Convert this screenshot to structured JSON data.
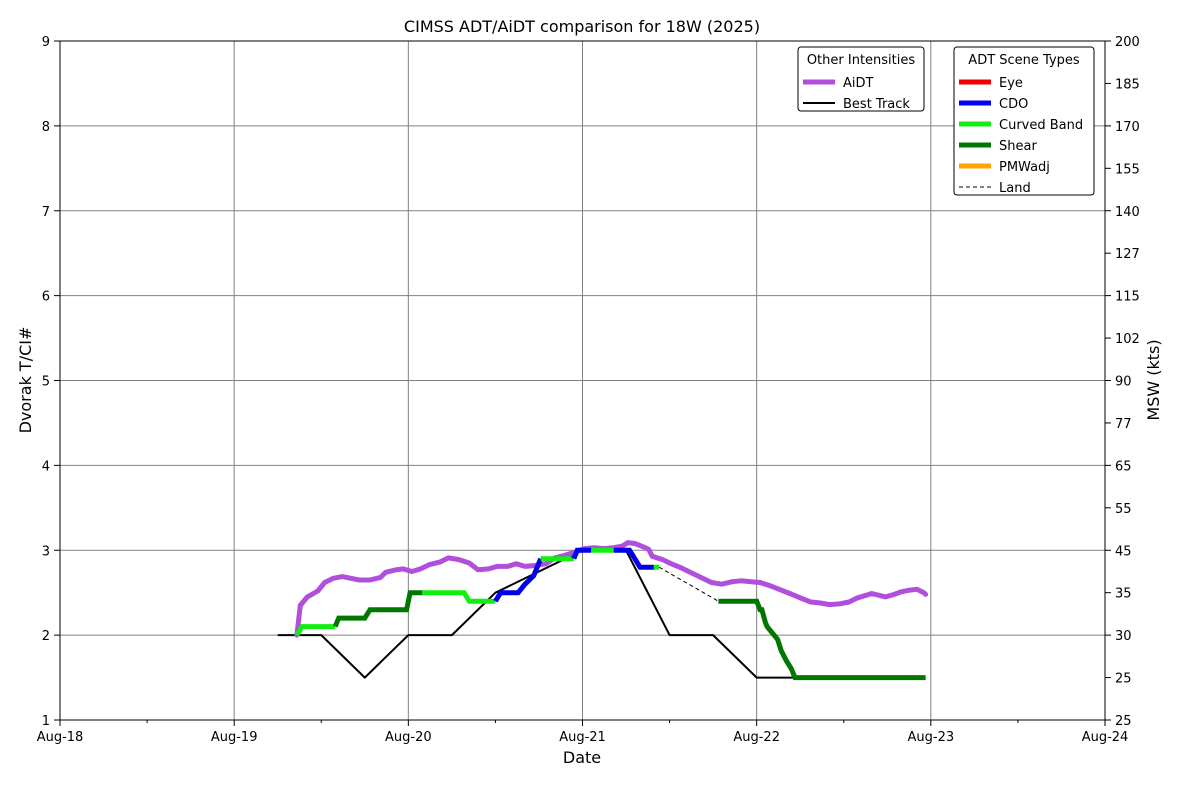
{
  "chart_data": {
    "type": "line",
    "title": "CIMSS ADT/AiDT comparison for 18W (2025)",
    "xlabel": "Date",
    "ylabel": "Dvorak T/CI#",
    "ylabel_right": "MSW (kts)",
    "x_ticks": [
      "Aug-18",
      "Aug-19",
      "Aug-20",
      "Aug-21",
      "Aug-22",
      "Aug-23",
      "Aug-24"
    ],
    "x_range_days": [
      18,
      24
    ],
    "y_ticks": [
      1,
      2,
      3,
      4,
      5,
      6,
      7,
      8,
      9
    ],
    "ylim": [
      1,
      9
    ],
    "y2_ticks": [
      {
        "t": 1.0,
        "label": "25"
      },
      {
        "t": 1.5,
        "label": "25"
      },
      {
        "t": 2.0,
        "label": "30"
      },
      {
        "t": 2.5,
        "label": "35"
      },
      {
        "t": 3.0,
        "label": "45"
      },
      {
        "t": 3.5,
        "label": "55"
      },
      {
        "t": 4.0,
        "label": "65"
      },
      {
        "t": 4.5,
        "label": "77"
      },
      {
        "t": 5.0,
        "label": "90"
      },
      {
        "t": 5.5,
        "label": "102"
      },
      {
        "t": 6.0,
        "label": "115"
      },
      {
        "t": 6.5,
        "label": "127"
      },
      {
        "t": 7.0,
        "label": "140"
      },
      {
        "t": 7.5,
        "label": "155"
      },
      {
        "t": 8.0,
        "label": "170"
      },
      {
        "t": 8.5,
        "label": "185"
      },
      {
        "t": 9.0,
        "label": "200"
      }
    ],
    "grid": true,
    "legend_other": {
      "title": "Other Intensities",
      "placement": "top-right",
      "entries": [
        {
          "name": "AiDT",
          "color": "#b04fdc",
          "style": "thick"
        },
        {
          "name": "Best Track",
          "color": "#000000",
          "style": "solid"
        }
      ]
    },
    "legend_scene": {
      "title": "ADT Scene Types",
      "placement": "top-right",
      "entries": [
        {
          "name": "Eye",
          "color": "#ee0000",
          "style": "thick"
        },
        {
          "name": "CDO",
          "color": "#0000ee",
          "style": "thick"
        },
        {
          "name": "Curved Band",
          "color": "#11ee11",
          "style": "thick"
        },
        {
          "name": "Shear",
          "color": "#007700",
          "style": "thick"
        },
        {
          "name": "PMWadj",
          "color": "#ffa500",
          "style": "thick"
        },
        {
          "name": "Land",
          "color": "#000000",
          "style": "dashed"
        }
      ]
    },
    "series": [
      {
        "name": "Best Track",
        "color": "#000000",
        "points": [
          [
            19.25,
            2.0
          ],
          [
            19.5,
            2.0
          ],
          [
            19.75,
            1.5
          ],
          [
            20.0,
            2.0
          ],
          [
            20.25,
            2.0
          ],
          [
            20.5,
            2.5
          ],
          [
            20.75,
            2.75
          ],
          [
            21.0,
            3.0
          ],
          [
            21.25,
            3.0
          ],
          [
            21.5,
            2.0
          ],
          [
            21.75,
            2.0
          ],
          [
            22.0,
            1.5
          ],
          [
            22.25,
            1.5
          ]
        ]
      },
      {
        "name": "AiDT",
        "color": "#b04fdc",
        "points": [
          [
            19.36,
            2.0
          ],
          [
            19.38,
            2.35
          ],
          [
            19.42,
            2.45
          ],
          [
            19.48,
            2.52
          ],
          [
            19.52,
            2.62
          ],
          [
            19.57,
            2.67
          ],
          [
            19.62,
            2.69
          ],
          [
            19.67,
            2.67
          ],
          [
            19.72,
            2.65
          ],
          [
            19.78,
            2.65
          ],
          [
            19.84,
            2.68
          ],
          [
            19.87,
            2.74
          ],
          [
            19.93,
            2.77
          ],
          [
            19.97,
            2.78
          ],
          [
            20.02,
            2.75
          ],
          [
            20.07,
            2.78
          ],
          [
            20.12,
            2.83
          ],
          [
            20.18,
            2.86
          ],
          [
            20.23,
            2.91
          ],
          [
            20.29,
            2.89
          ],
          [
            20.35,
            2.85
          ],
          [
            20.4,
            2.77
          ],
          [
            20.46,
            2.78
          ],
          [
            20.51,
            2.81
          ],
          [
            20.57,
            2.81
          ],
          [
            20.62,
            2.84
          ],
          [
            20.67,
            2.81
          ],
          [
            20.73,
            2.82
          ],
          [
            20.79,
            2.84
          ],
          [
            20.84,
            2.91
          ],
          [
            20.9,
            2.94
          ],
          [
            20.96,
            2.98
          ],
          [
            21.01,
            3.02
          ],
          [
            21.07,
            3.03
          ],
          [
            21.12,
            3.02
          ],
          [
            21.18,
            3.03
          ],
          [
            21.23,
            3.05
          ],
          [
            21.26,
            3.09
          ],
          [
            21.3,
            3.08
          ],
          [
            21.35,
            3.04
          ],
          [
            21.38,
            3.01
          ],
          [
            21.4,
            2.93
          ],
          [
            21.46,
            2.89
          ],
          [
            21.51,
            2.84
          ],
          [
            21.57,
            2.79
          ],
          [
            21.63,
            2.73
          ],
          [
            21.69,
            2.67
          ],
          [
            21.74,
            2.62
          ],
          [
            21.8,
            2.6
          ],
          [
            21.86,
            2.63
          ],
          [
            21.91,
            2.64
          ],
          [
            21.97,
            2.63
          ],
          [
            22.02,
            2.62
          ],
          [
            22.08,
            2.58
          ],
          [
            22.14,
            2.53
          ],
          [
            22.19,
            2.49
          ],
          [
            22.25,
            2.44
          ],
          [
            22.31,
            2.39
          ],
          [
            22.36,
            2.38
          ],
          [
            22.42,
            2.36
          ],
          [
            22.48,
            2.37
          ],
          [
            22.53,
            2.39
          ],
          [
            22.58,
            2.44
          ],
          [
            22.63,
            2.47
          ],
          [
            22.66,
            2.49
          ],
          [
            22.7,
            2.47
          ],
          [
            22.74,
            2.45
          ],
          [
            22.79,
            2.48
          ],
          [
            22.83,
            2.51
          ],
          [
            22.88,
            2.53
          ],
          [
            22.92,
            2.54
          ],
          [
            22.96,
            2.5
          ],
          [
            22.97,
            2.48
          ]
        ]
      },
      {
        "name": "ADT",
        "segments": [
          {
            "scene": "Curved Band",
            "color": "#11ee11",
            "points": [
              [
                19.36,
                2.0
              ],
              [
                19.39,
                2.1
              ],
              [
                19.58,
                2.1
              ]
            ]
          },
          {
            "scene": "Shear",
            "color": "#007700",
            "points": [
              [
                19.58,
                2.1
              ],
              [
                19.6,
                2.2
              ],
              [
                19.75,
                2.2
              ],
              [
                19.78,
                2.3
              ],
              [
                19.99,
                2.3
              ],
              [
                20.01,
                2.5
              ],
              [
                20.08,
                2.5
              ]
            ]
          },
          {
            "scene": "Curved Band",
            "color": "#11ee11",
            "points": [
              [
                20.08,
                2.5
              ],
              [
                20.32,
                2.5
              ],
              [
                20.35,
                2.4
              ],
              [
                20.5,
                2.4
              ]
            ]
          },
          {
            "scene": "CDO",
            "color": "#0000ee",
            "points": [
              [
                20.5,
                2.4
              ],
              [
                20.53,
                2.5
              ],
              [
                20.63,
                2.5
              ],
              [
                20.67,
                2.6
              ],
              [
                20.72,
                2.7
              ],
              [
                20.76,
                2.9
              ]
            ]
          },
          {
            "scene": "Curved Band",
            "color": "#11ee11",
            "points": [
              [
                20.76,
                2.9
              ],
              [
                20.95,
                2.9
              ]
            ]
          },
          {
            "scene": "CDO",
            "color": "#0000ee",
            "points": [
              [
                20.95,
                2.9
              ],
              [
                20.97,
                3.0
              ],
              [
                21.05,
                3.0
              ]
            ]
          },
          {
            "scene": "Curved Band",
            "color": "#11ee11",
            "points": [
              [
                21.05,
                3.0
              ],
              [
                21.18,
                3.0
              ]
            ]
          },
          {
            "scene": "CDO",
            "color": "#0000ee",
            "points": [
              [
                21.18,
                3.0
              ],
              [
                21.27,
                3.0
              ],
              [
                21.3,
                2.9
              ],
              [
                21.33,
                2.8
              ],
              [
                21.41,
                2.8
              ]
            ]
          },
          {
            "scene": "Curved Band",
            "color": "#11ee11",
            "points": [
              [
                21.41,
                2.8
              ],
              [
                21.44,
                2.8
              ]
            ]
          },
          {
            "scene": "Shear",
            "color": "#007700",
            "points": [
              [
                21.78,
                2.4
              ],
              [
                22.0,
                2.4
              ],
              [
                22.02,
                2.3
              ],
              [
                22.03,
                2.3
              ],
              [
                22.05,
                2.15
              ],
              [
                22.06,
                2.1
              ],
              [
                22.08,
                2.05
              ],
              [
                22.1,
                2.0
              ],
              [
                22.12,
                1.95
              ],
              [
                22.14,
                1.82
              ],
              [
                22.17,
                1.7
              ],
              [
                22.2,
                1.6
              ],
              [
                22.22,
                1.5
              ],
              [
                22.97,
                1.5
              ]
            ]
          }
        ]
      },
      {
        "name": "Land",
        "color": "#000000",
        "dashed": true,
        "points": [
          [
            21.44,
            2.8
          ],
          [
            21.78,
            2.4
          ]
        ]
      }
    ]
  }
}
